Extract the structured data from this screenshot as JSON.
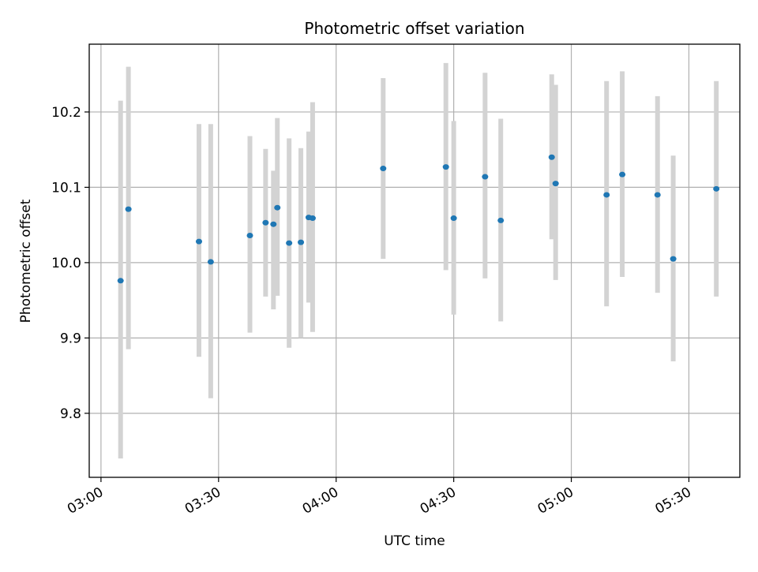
{
  "chart_data": {
    "type": "scatter",
    "title": "Photometric offset variation",
    "xlabel": "UTC time",
    "ylabel": "Photometric offset",
    "xlim": [
      "02:57",
      "05:43"
    ],
    "ylim": [
      9.715,
      10.29
    ],
    "xticks": [
      "03:00",
      "03:30",
      "04:00",
      "04:30",
      "05:00",
      "05:30"
    ],
    "yticks": [
      9.8,
      9.9,
      10.0,
      10.1,
      10.2
    ],
    "grid": true,
    "legend": null,
    "colors": {
      "point": "#1f77b4",
      "errorbar": "#d3d3d3"
    },
    "points": [
      {
        "x": "03:05",
        "y": 9.976,
        "ylow": 9.74,
        "yhigh": 10.215
      },
      {
        "x": "03:07",
        "y": 10.071,
        "ylow": 9.885,
        "yhigh": 10.26
      },
      {
        "x": "03:25",
        "y": 10.028,
        "ylow": 9.875,
        "yhigh": 10.184
      },
      {
        "x": "03:28",
        "y": 10.001,
        "ylow": 9.82,
        "yhigh": 10.184
      },
      {
        "x": "03:38",
        "y": 10.036,
        "ylow": 9.907,
        "yhigh": 10.168
      },
      {
        "x": "03:42",
        "y": 10.053,
        "ylow": 9.955,
        "yhigh": 10.151
      },
      {
        "x": "03:44",
        "y": 10.051,
        "ylow": 9.938,
        "yhigh": 10.122
      },
      {
        "x": "03:45",
        "y": 10.073,
        "ylow": 9.956,
        "yhigh": 10.192
      },
      {
        "x": "03:48",
        "y": 10.026,
        "ylow": 9.887,
        "yhigh": 10.165
      },
      {
        "x": "03:51",
        "y": 10.027,
        "ylow": 9.9,
        "yhigh": 10.152
      },
      {
        "x": "03:53",
        "y": 10.06,
        "ylow": 9.947,
        "yhigh": 10.174
      },
      {
        "x": "03:54",
        "y": 10.059,
        "ylow": 9.908,
        "yhigh": 10.213
      },
      {
        "x": "04:12",
        "y": 10.125,
        "ylow": 10.005,
        "yhigh": 10.245
      },
      {
        "x": "04:28",
        "y": 10.127,
        "ylow": 9.99,
        "yhigh": 10.265
      },
      {
        "x": "04:30",
        "y": 10.059,
        "ylow": 9.931,
        "yhigh": 10.188
      },
      {
        "x": "04:38",
        "y": 10.114,
        "ylow": 9.979,
        "yhigh": 10.252
      },
      {
        "x": "04:42",
        "y": 10.056,
        "ylow": 9.922,
        "yhigh": 10.191
      },
      {
        "x": "04:55",
        "y": 10.14,
        "ylow": 10.031,
        "yhigh": 10.25
      },
      {
        "x": "04:56",
        "y": 10.105,
        "ylow": 9.977,
        "yhigh": 10.236
      },
      {
        "x": "05:09",
        "y": 10.09,
        "ylow": 9.942,
        "yhigh": 10.241
      },
      {
        "x": "05:13",
        "y": 10.117,
        "ylow": 9.981,
        "yhigh": 10.254
      },
      {
        "x": "05:22",
        "y": 10.09,
        "ylow": 9.96,
        "yhigh": 10.221
      },
      {
        "x": "05:26",
        "y": 10.005,
        "ylow": 9.869,
        "yhigh": 10.142
      },
      {
        "x": "05:37",
        "y": 10.098,
        "ylow": 9.955,
        "yhigh": 10.241
      }
    ]
  }
}
